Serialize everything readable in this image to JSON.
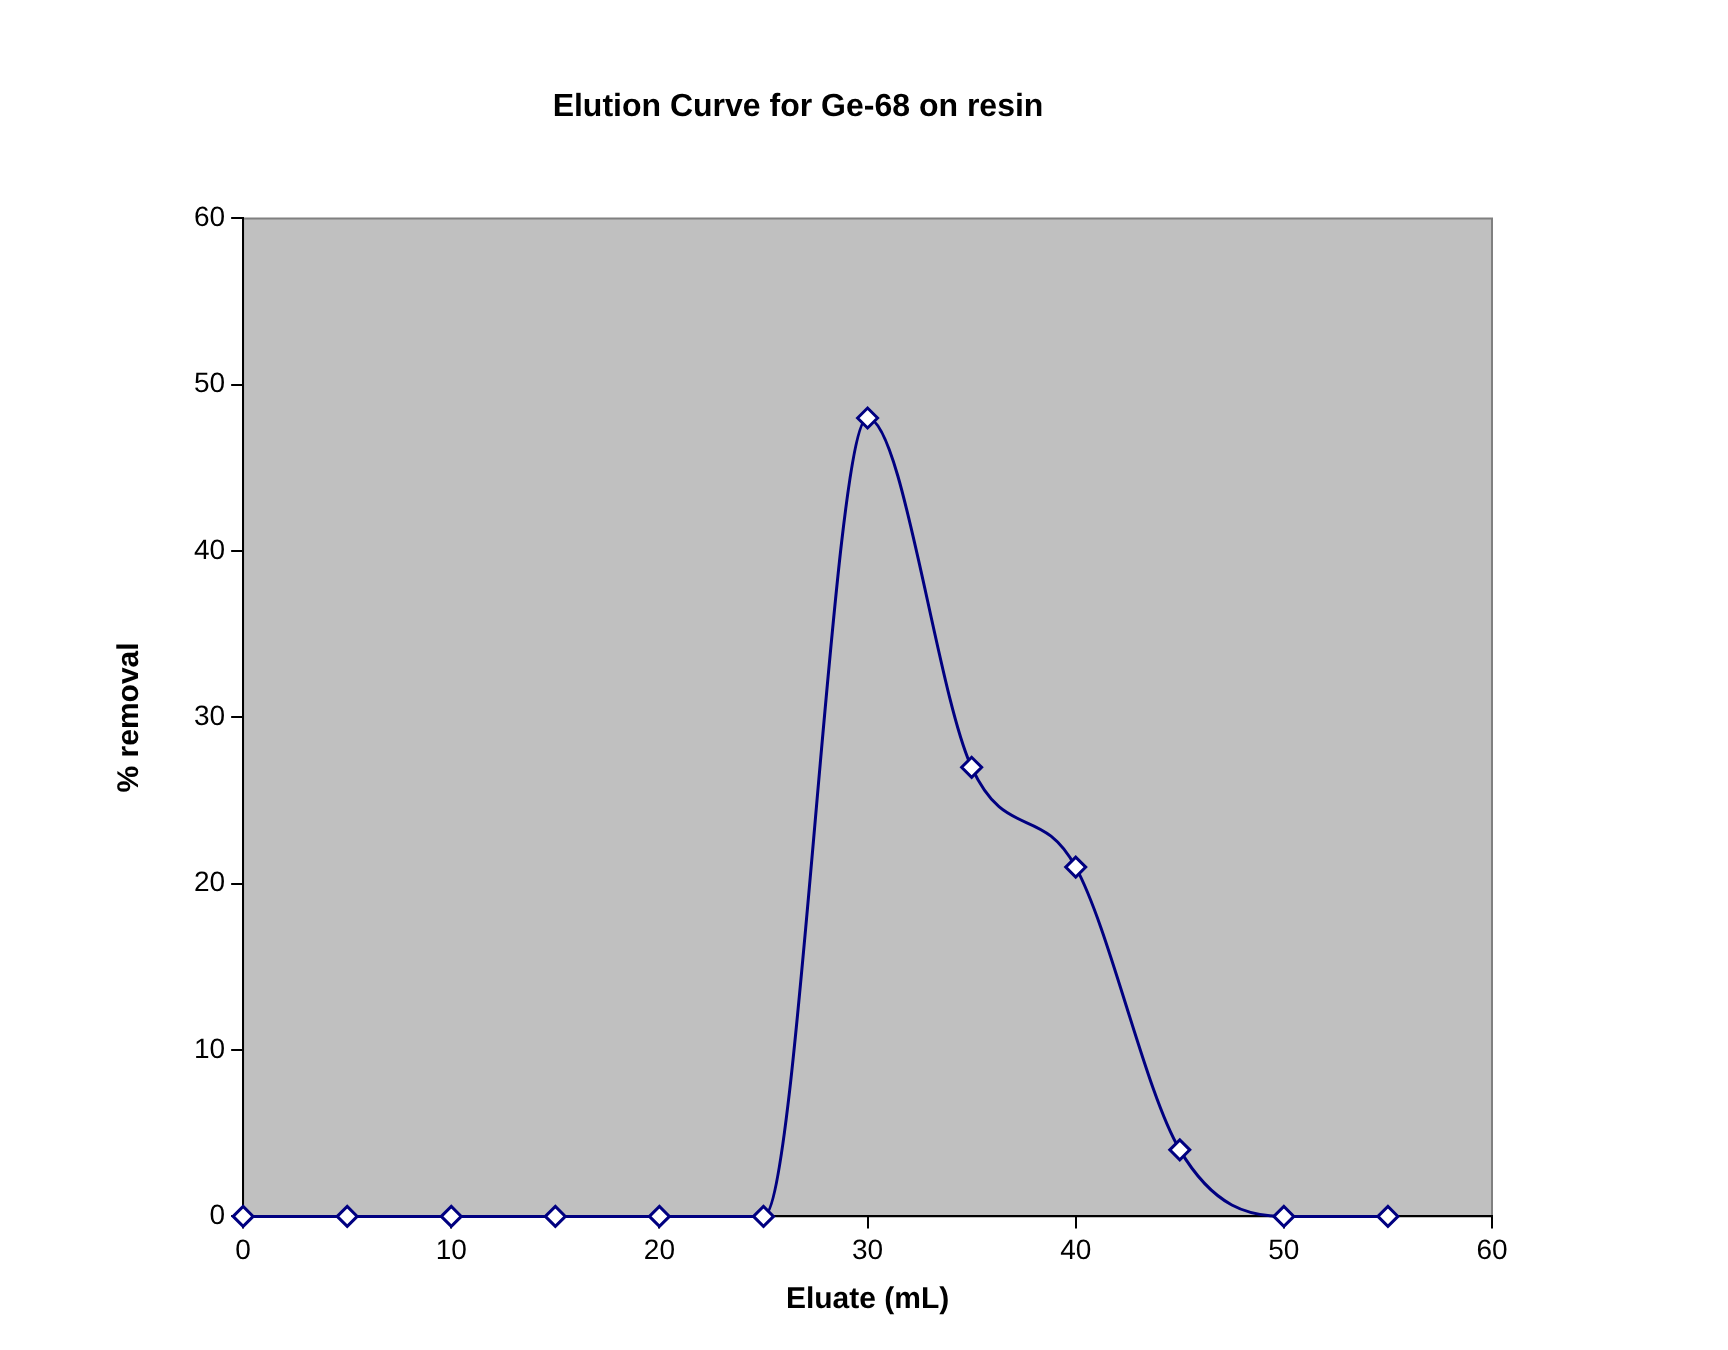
{
  "chart_data": {
    "type": "line",
    "title": "Elution Curve for Ge-68 on resin",
    "xlabel": "Eluate (mL)",
    "ylabel": "% removal",
    "x": [
      0,
      5,
      10,
      15,
      20,
      25,
      30,
      35,
      40,
      45,
      50,
      55
    ],
    "series": [
      {
        "color": "#000080",
        "values": [
          0,
          0,
          0,
          0,
          0,
          0,
          48,
          27,
          21,
          4,
          0,
          0
        ]
      }
    ],
    "xlim": [
      0,
      60
    ],
    "xticks": [
      0,
      10,
      20,
      30,
      40,
      50,
      60
    ],
    "ylim": [
      0,
      60
    ],
    "yticks": [
      0,
      10,
      20,
      30,
      40,
      50,
      60
    ],
    "grid": false,
    "legend": false,
    "marker": "diamond",
    "line_style": "solid"
  }
}
